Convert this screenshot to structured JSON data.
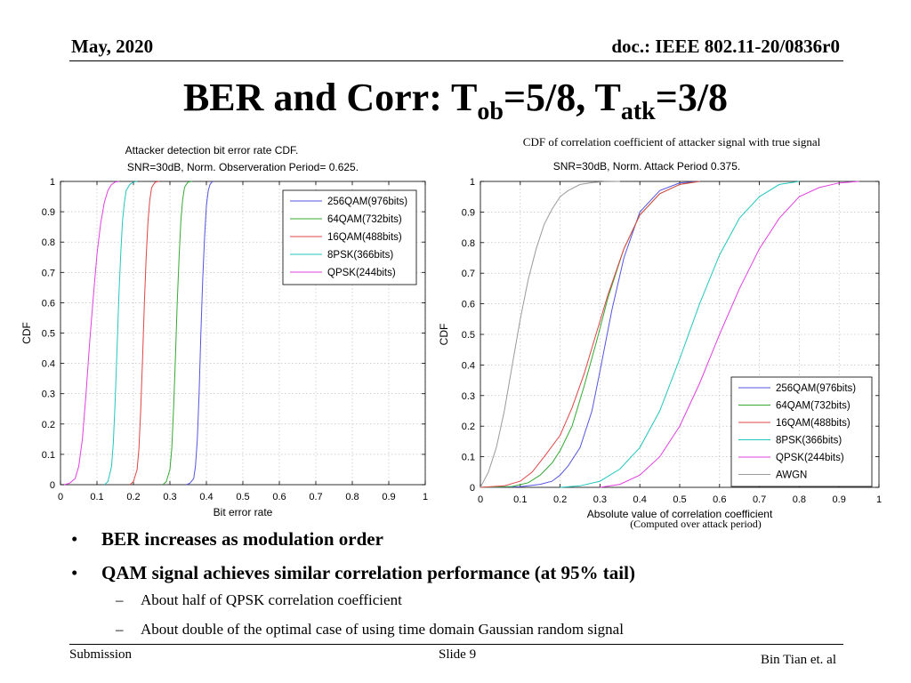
{
  "header": {
    "date": "May, 2020",
    "doc": "doc.: IEEE 802.11-20/0836r0"
  },
  "title": {
    "prefix": "BER and Corr: T",
    "sub1": "ob",
    "mid": "=5/8, T",
    "sub2": "atk",
    "suffix": "=3/8"
  },
  "chart_data": [
    {
      "type": "line",
      "title": "Attacker detection bit error rate CDF.",
      "subtitle": "SNR=30dB, Norm. Observeration Period= 0.625.",
      "xlabel": "Bit error rate",
      "ylabel": "CDF",
      "xlim": [
        0,
        1
      ],
      "ylim": [
        0,
        1
      ],
      "xticks": [
        0,
        0.1,
        0.2,
        0.3,
        0.4,
        0.5,
        0.6,
        0.7,
        0.8,
        0.9,
        1
      ],
      "yticks": [
        0,
        0.1,
        0.2,
        0.3,
        0.4,
        0.5,
        0.6,
        0.7,
        0.8,
        0.9,
        1
      ],
      "grid": true,
      "legend_position": "top-right",
      "series": [
        {
          "name": "256QAM(976bits)",
          "color": "#5555e0",
          "x": [
            0.345,
            0.355,
            0.365,
            0.37,
            0.375,
            0.38,
            0.385,
            0.39,
            0.395,
            0.4,
            0.405,
            0.41,
            0.415,
            0.42
          ],
          "y": [
            0,
            0.005,
            0.02,
            0.06,
            0.15,
            0.3,
            0.5,
            0.68,
            0.82,
            0.92,
            0.97,
            0.99,
            0.998,
            1
          ]
        },
        {
          "name": "64QAM(732bits)",
          "color": "#33aa33",
          "x": [
            0.28,
            0.29,
            0.3,
            0.305,
            0.31,
            0.315,
            0.32,
            0.325,
            0.33,
            0.335,
            0.34,
            0.345,
            0.35,
            0.36
          ],
          "y": [
            0,
            0.01,
            0.05,
            0.12,
            0.25,
            0.42,
            0.6,
            0.75,
            0.87,
            0.94,
            0.98,
            0.99,
            0.998,
            1
          ]
        },
        {
          "name": "16QAM(488bits)",
          "color": "#e04545",
          "x": [
            0.19,
            0.2,
            0.21,
            0.215,
            0.22,
            0.225,
            0.23,
            0.235,
            0.24,
            0.245,
            0.25,
            0.255,
            0.26,
            0.27
          ],
          "y": [
            0,
            0.01,
            0.05,
            0.12,
            0.25,
            0.42,
            0.6,
            0.75,
            0.87,
            0.94,
            0.98,
            0.99,
            0.998,
            1
          ]
        },
        {
          "name": "8PSK(366bits)",
          "color": "#22c7bd",
          "x": [
            0.12,
            0.13,
            0.14,
            0.145,
            0.15,
            0.155,
            0.16,
            0.165,
            0.17,
            0.175,
            0.18,
            0.19,
            0.2,
            0.21
          ],
          "y": [
            0,
            0.01,
            0.06,
            0.14,
            0.28,
            0.45,
            0.62,
            0.76,
            0.87,
            0.93,
            0.97,
            0.99,
            0.998,
            1
          ]
        },
        {
          "name": "QPSK(244bits)",
          "color": "#e040e0",
          "x": [
            0.01,
            0.025,
            0.04,
            0.05,
            0.06,
            0.07,
            0.08,
            0.09,
            0.1,
            0.11,
            0.12,
            0.13,
            0.14,
            0.15,
            0.16
          ],
          "y": [
            0,
            0.005,
            0.02,
            0.06,
            0.15,
            0.3,
            0.47,
            0.62,
            0.76,
            0.86,
            0.93,
            0.97,
            0.99,
            0.998,
            1
          ]
        }
      ]
    },
    {
      "type": "line",
      "title": "CDF of correlation coefficient of attacker signal with true signal",
      "subtitle": "SNR=30dB, Norm. Attack Period 0.375.",
      "xlabel": "Absolute value of correlation coefficient",
      "xlabel_note": "(Computed over attack period)",
      "ylabel": "CDF",
      "xlim": [
        0,
        1
      ],
      "ylim": [
        0,
        1
      ],
      "xticks": [
        0,
        0.1,
        0.2,
        0.3,
        0.4,
        0.5,
        0.6,
        0.7,
        0.8,
        0.9,
        1
      ],
      "yticks": [
        0,
        0.1,
        0.2,
        0.3,
        0.4,
        0.5,
        0.6,
        0.7,
        0.8,
        0.9,
        1
      ],
      "grid": true,
      "legend_position": "bottom-right",
      "series": [
        {
          "name": "256QAM(976bits)",
          "color": "#5555e0",
          "x": [
            0,
            0.1,
            0.15,
            0.18,
            0.2,
            0.22,
            0.25,
            0.28,
            0.3,
            0.33,
            0.36,
            0.4,
            0.45,
            0.5,
            0.55
          ],
          "y": [
            0,
            0.002,
            0.01,
            0.02,
            0.04,
            0.07,
            0.13,
            0.25,
            0.38,
            0.58,
            0.75,
            0.9,
            0.97,
            0.995,
            1
          ]
        },
        {
          "name": "64QAM(732bits)",
          "color": "#33aa33",
          "x": [
            0,
            0.08,
            0.12,
            0.15,
            0.18,
            0.2,
            0.23,
            0.26,
            0.29,
            0.32,
            0.36,
            0.4,
            0.45,
            0.5,
            0.55
          ],
          "y": [
            0,
            0.003,
            0.015,
            0.04,
            0.08,
            0.12,
            0.2,
            0.33,
            0.47,
            0.62,
            0.78,
            0.89,
            0.96,
            0.99,
            1
          ]
        },
        {
          "name": "16QAM(488bits)",
          "color": "#e04545",
          "x": [
            0,
            0.06,
            0.1,
            0.13,
            0.16,
            0.2,
            0.23,
            0.26,
            0.29,
            0.32,
            0.36,
            0.4,
            0.45,
            0.5,
            0.55
          ],
          "y": [
            0,
            0.005,
            0.02,
            0.05,
            0.1,
            0.17,
            0.26,
            0.37,
            0.5,
            0.63,
            0.78,
            0.89,
            0.96,
            0.99,
            1
          ]
        },
        {
          "name": "8PSK(366bits)",
          "color": "#22c7bd",
          "x": [
            0.2,
            0.25,
            0.3,
            0.35,
            0.4,
            0.45,
            0.5,
            0.55,
            0.6,
            0.65,
            0.7,
            0.75,
            0.8
          ],
          "y": [
            0,
            0.005,
            0.02,
            0.06,
            0.13,
            0.25,
            0.42,
            0.6,
            0.76,
            0.88,
            0.95,
            0.99,
            1
          ]
        },
        {
          "name": "QPSK(244bits)",
          "color": "#e040e0",
          "x": [
            0.3,
            0.35,
            0.4,
            0.45,
            0.5,
            0.55,
            0.6,
            0.65,
            0.7,
            0.75,
            0.8,
            0.85,
            0.9,
            0.95
          ],
          "y": [
            0,
            0.01,
            0.04,
            0.1,
            0.2,
            0.34,
            0.5,
            0.65,
            0.78,
            0.88,
            0.95,
            0.98,
            0.995,
            1
          ]
        },
        {
          "name": "AWGN",
          "color": "#9a9a9a",
          "x": [
            0,
            0.02,
            0.04,
            0.06,
            0.08,
            0.1,
            0.12,
            0.14,
            0.16,
            0.18,
            0.2,
            0.22,
            0.25,
            0.28,
            0.31,
            0.35
          ],
          "y": [
            0,
            0.05,
            0.13,
            0.25,
            0.4,
            0.55,
            0.68,
            0.78,
            0.86,
            0.91,
            0.95,
            0.97,
            0.99,
            0.996,
            0.999,
            1
          ]
        }
      ]
    }
  ],
  "bullets": [
    "BER increases as modulation order",
    "QAM signal achieves similar correlation performance (at 95% tail)"
  ],
  "sub_bullets": [
    "About half of QPSK correlation coefficient",
    "About double of the optimal case of using time domain Gaussian random signal"
  ],
  "bullet_marker": "•",
  "sub_marker": "–",
  "footer": {
    "left": "Submission",
    "center": "Slide 9",
    "right": "Bin Tian et. al"
  }
}
